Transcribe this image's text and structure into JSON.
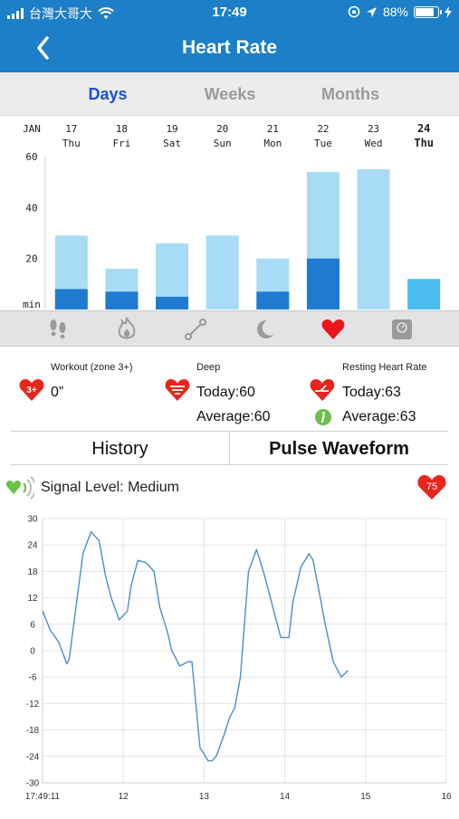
{
  "status": {
    "carrier": "台灣大哥大",
    "time": "17:49",
    "battery": "88%",
    "battery_level": 0.88
  },
  "nav": {
    "title": "Heart Rate",
    "back_icon": "chevron-left-icon"
  },
  "segments": [
    "Days",
    "Weeks",
    "Months"
  ],
  "selected_segment": "Days",
  "sleep_chart": {
    "month": "JAN",
    "days": [
      {
        "date": "17",
        "dow": "Thu",
        "total": 29,
        "deep": 8
      },
      {
        "date": "18",
        "dow": "Fri",
        "total": 16,
        "deep": 7
      },
      {
        "date": "19",
        "dow": "Sat",
        "total": 26,
        "deep": 5
      },
      {
        "date": "20",
        "dow": "Sun",
        "total": 29,
        "deep": 0
      },
      {
        "date": "21",
        "dow": "Mon",
        "total": 20,
        "deep": 7
      },
      {
        "date": "22",
        "dow": "Tue",
        "total": 54,
        "deep": 20
      },
      {
        "date": "23",
        "dow": "Wed",
        "total": 55,
        "deep": 0
      },
      {
        "date": "24",
        "dow": "Thu",
        "total": 12,
        "deep": 0,
        "today": true
      }
    ],
    "y_ticks": [
      "60",
      "40",
      "20",
      "min"
    ],
    "ylim": [
      0,
      60
    ],
    "colors": {
      "light": "#a8dcf6",
      "dark": "#1f7bd0",
      "today": "#4bbcf0"
    }
  },
  "icon_bar": [
    "steps-icon",
    "calories-flame-icon",
    "distance-icon",
    "sleep-moon-icon",
    "heart-icon",
    "scale-icon"
  ],
  "selected_icon": "heart-icon",
  "stats": {
    "workout_label": "Workout (zone 3+)",
    "workout_value": "0”",
    "workout_badge": "3+",
    "deep_label": "Deep",
    "deep_today": "Today:60",
    "deep_average": "Average:60",
    "resting_label": "Resting Heart Rate",
    "resting_today": "Today:63",
    "resting_average": "Average:63"
  },
  "tabs": [
    "History",
    "Pulse Waveform"
  ],
  "selected_tab": "Pulse Waveform",
  "signal": {
    "label": "Signal Level: Medium",
    "bpm": "75"
  },
  "chart_data": {
    "type": "line",
    "title": "",
    "xlabel": "",
    "ylabel": "",
    "x_tick_labels": [
      "17:49:11",
      "12",
      "13",
      "14",
      "15",
      "16"
    ],
    "y_tick_labels": [
      "30",
      "24",
      "18",
      "12",
      "6",
      "0",
      "-6",
      "-12",
      "-18",
      "-24",
      "-30"
    ],
    "xlim": [
      11,
      16
    ],
    "ylim": [
      -30,
      30
    ],
    "grid": true,
    "color": "#4a8fd0",
    "x": [
      11.0,
      11.1,
      11.2,
      11.3,
      11.33,
      11.4,
      11.5,
      11.6,
      11.7,
      11.78,
      11.85,
      11.95,
      12.05,
      12.1,
      12.18,
      12.28,
      12.38,
      12.45,
      12.55,
      12.6,
      12.7,
      12.8,
      12.85,
      12.95,
      13.05,
      13.1,
      13.15,
      13.25,
      13.32,
      13.38,
      13.45,
      13.55,
      13.65,
      13.75,
      13.85,
      13.95,
      14.05,
      14.1,
      14.2,
      14.3,
      14.35,
      14.45,
      14.5,
      14.6,
      14.7,
      14.78,
      14.88,
      14.98,
      15.08,
      15.2,
      15.25
    ],
    "y": [
      9,
      4.5,
      2,
      -3,
      -2,
      8,
      22,
      27,
      25,
      17,
      12,
      7,
      9,
      15,
      20.5,
      20,
      18,
      10,
      4,
      0,
      -3.5,
      -2.5,
      -2.5,
      -22,
      -25,
      -25,
      -24,
      -19,
      -15,
      -13,
      -6,
      18,
      23,
      17,
      10,
      3,
      3,
      11,
      19,
      22,
      20.5,
      11,
      6,
      -2.5,
      -6,
      -4.5,
      null,
      null,
      null,
      null,
      null
    ]
  }
}
